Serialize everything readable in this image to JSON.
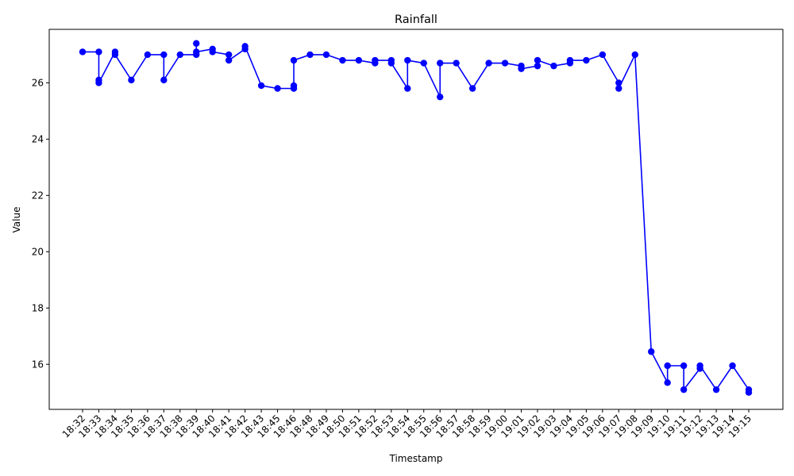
{
  "chart_data": {
    "type": "line",
    "title": "Rainfall",
    "xlabel": "Timestamp",
    "ylabel": "Value",
    "categories": [
      "18:32",
      "18:33",
      "18:34",
      "18:35",
      "18:36",
      "18:37",
      "18:38",
      "18:39",
      "18:40",
      "18:41",
      "18:42",
      "18:43",
      "18:45",
      "18:46",
      "18:48",
      "18:49",
      "18:50",
      "18:51",
      "18:52",
      "18:53",
      "18:54",
      "18:55",
      "18:56",
      "18:57",
      "18:58",
      "18:59",
      "19:00",
      "19:01",
      "19:02",
      "19:03",
      "19:04",
      "19:05",
      "19:06",
      "19:07",
      "19:08",
      "19:09",
      "19:10",
      "19:11",
      "19:12",
      "19:13",
      "19:14",
      "19:15"
    ],
    "points": [
      [
        "18:32",
        27.1
      ],
      [
        "18:33",
        27.1
      ],
      [
        "18:33",
        26.1
      ],
      [
        "18:33",
        26.0
      ],
      [
        "18:34",
        27.1
      ],
      [
        "18:34",
        27.0
      ],
      [
        "18:35",
        26.1
      ],
      [
        "18:36",
        27.0
      ],
      [
        "18:37",
        27.0
      ],
      [
        "18:37",
        26.1
      ],
      [
        "18:38",
        27.0
      ],
      [
        "18:39",
        27.0
      ],
      [
        "18:39",
        27.4
      ],
      [
        "18:39",
        27.1
      ],
      [
        "18:40",
        27.2
      ],
      [
        "18:40",
        27.1
      ],
      [
        "18:41",
        27.0
      ],
      [
        "18:41",
        26.8
      ],
      [
        "18:42",
        27.2
      ],
      [
        "18:42",
        27.3
      ],
      [
        "18:43",
        25.9
      ],
      [
        "18:45",
        25.8
      ],
      [
        "18:46",
        25.8
      ],
      [
        "18:46",
        25.9
      ],
      [
        "18:46",
        26.8
      ],
      [
        "18:48",
        27.0
      ],
      [
        "18:49",
        27.0
      ],
      [
        "18:50",
        26.8
      ],
      [
        "18:51",
        26.8
      ],
      [
        "18:52",
        26.7
      ],
      [
        "18:52",
        26.8
      ],
      [
        "18:53",
        26.8
      ],
      [
        "18:53",
        26.7
      ],
      [
        "18:54",
        25.8
      ],
      [
        "18:54",
        26.8
      ],
      [
        "18:55",
        26.7
      ],
      [
        "18:56",
        25.5
      ],
      [
        "18:56",
        26.7
      ],
      [
        "18:57",
        26.7
      ],
      [
        "18:58",
        25.8
      ],
      [
        "18:59",
        26.7
      ],
      [
        "19:00",
        26.7
      ],
      [
        "19:01",
        26.6
      ],
      [
        "19:01",
        26.5
      ],
      [
        "19:02",
        26.6
      ],
      [
        "19:02",
        26.8
      ],
      [
        "19:03",
        26.6
      ],
      [
        "19:04",
        26.7
      ],
      [
        "19:04",
        26.8
      ],
      [
        "19:05",
        26.8
      ],
      [
        "19:06",
        27.0
      ],
      [
        "19:07",
        26.0
      ],
      [
        "19:07",
        25.8
      ],
      [
        "19:08",
        27.0
      ],
      [
        "19:09",
        16.45
      ],
      [
        "19:10",
        15.35
      ],
      [
        "19:10",
        15.95
      ],
      [
        "19:11",
        15.95
      ],
      [
        "19:11",
        15.1
      ],
      [
        "19:12",
        15.85
      ],
      [
        "19:12",
        15.95
      ],
      [
        "19:13",
        15.1
      ],
      [
        "19:14",
        15.95
      ],
      [
        "19:15",
        15.1
      ],
      [
        "19:15",
        15.0
      ]
    ],
    "yticks": [
      16,
      18,
      20,
      22,
      24,
      26
    ],
    "ylim": [
      14.4,
      27.9
    ],
    "line_color": "#0000ff",
    "marker_color": "#0000ff",
    "grid": false,
    "legend": "none"
  }
}
